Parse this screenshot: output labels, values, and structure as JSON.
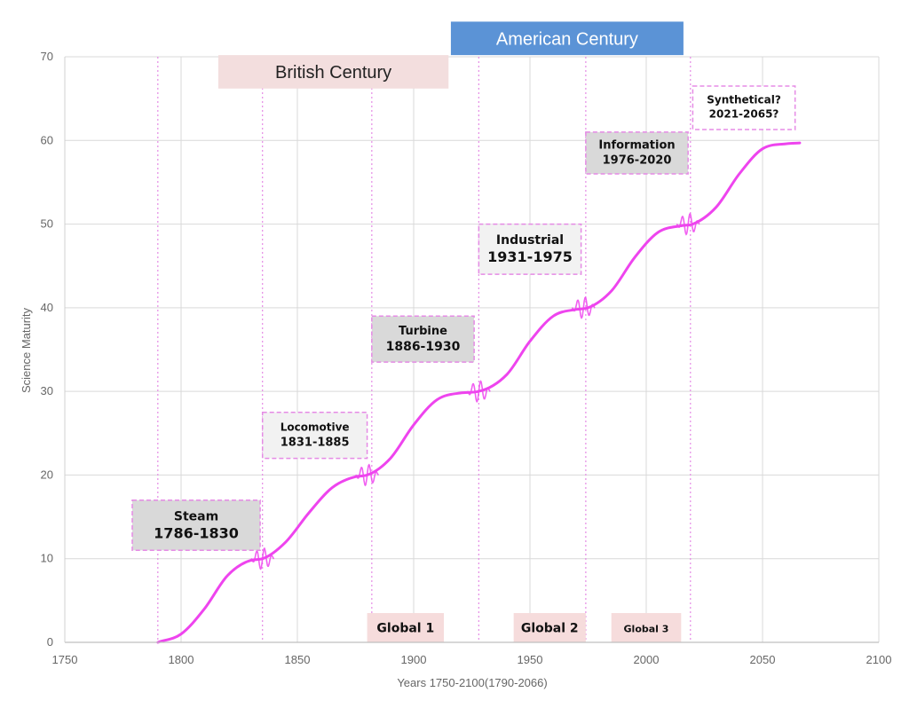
{
  "chart_data": {
    "type": "line",
    "title": "",
    "xlabel": "Years 1750-2100(1790-2066)",
    "ylabel": "Science Maturity",
    "xlim": [
      1750,
      2100
    ],
    "ylim": [
      0,
      70
    ],
    "x_ticks": [
      1750,
      1800,
      1850,
      1900,
      1950,
      2000,
      2050,
      2100
    ],
    "y_ticks": [
      0,
      10,
      20,
      30,
      40,
      50,
      60,
      70
    ],
    "grid": true,
    "series": [
      {
        "color": "#ee44ee",
        "x": [
          1790,
          1800,
          1810,
          1820,
          1830,
          1835,
          1845,
          1855,
          1865,
          1875,
          1880,
          1890,
          1900,
          1910,
          1920,
          1928,
          1940,
          1950,
          1960,
          1970,
          1975,
          1985,
          1995,
          2005,
          2015,
          2020,
          2030,
          2040,
          2050,
          2060,
          2066
        ],
        "y": [
          0,
          1,
          4,
          8,
          9.8,
          10,
          12,
          15.5,
          18.5,
          19.8,
          20,
          22,
          26,
          29,
          29.8,
          30,
          32,
          36,
          39,
          39.8,
          40,
          42,
          46,
          49,
          49.8,
          50,
          52,
          56,
          59,
          59.6,
          59.7
        ]
      }
    ],
    "eras": [
      {
        "name": "Steam",
        "years": "1786-1830",
        "x_start": 1779,
        "x_end": 1784,
        "x_from": 1779,
        "x_to": 1834,
        "y_top": 17,
        "y_bottom": 11,
        "fill": "#d9d9d9",
        "name_size": 14,
        "years_size": 16
      },
      {
        "name": "Locomotive",
        "years": "1831-1885",
        "x_from": 1835,
        "x_to": 1880,
        "y_top": 27.5,
        "y_bottom": 22,
        "fill": "#f2f2f2",
        "name_size": 12,
        "years_size": 13
      },
      {
        "name": "Turbine",
        "years": "1886-1930",
        "x_from": 1882,
        "x_to": 1926,
        "y_top": 39,
        "y_bottom": 33.5,
        "fill": "#d9d9d9",
        "name_size": 13,
        "years_size": 14
      },
      {
        "name": "Industrial",
        "years": "1931-1975",
        "x_from": 1928,
        "x_to": 1972,
        "y_top": 50,
        "y_bottom": 44,
        "fill": "#f2f2f2",
        "name_size": 14,
        "years_size": 16
      },
      {
        "name": "Information",
        "years": "1976-2020",
        "x_from": 1974,
        "x_to": 2018,
        "y_top": 61,
        "y_bottom": 56,
        "fill": "#d9d9d9",
        "name_size": 13,
        "years_size": 13
      },
      {
        "name": "Synthetical?",
        "years": "2021-2065?",
        "x_from": 2020,
        "x_to": 2064,
        "y_top": 66.5,
        "y_bottom": 61.3,
        "fill": "#ffffff",
        "name_size": 12,
        "years_size": 12
      }
    ],
    "era_boundaries": [
      1790,
      1835,
      1882,
      1928,
      1974,
      2019
    ],
    "transitions": [
      1835,
      1880,
      1928,
      1973,
      2018
    ],
    "centuries": [
      {
        "label": "British Century",
        "x_from": 1816,
        "x_to": 1915,
        "y_top": 70.2,
        "y_bottom": 66.2,
        "fill": "#f3dede",
        "text_color": "#222222"
      },
      {
        "label": "American Century",
        "x_from": 1916,
        "x_to": 2016,
        "y_top": 74.2,
        "y_bottom": 70.2,
        "fill": "#5b93d6",
        "text_color": "#ffffff"
      }
    ],
    "globals": [
      {
        "label": "Global 1",
        "x_from": 1880,
        "x_to": 1913,
        "y_top": 3.5,
        "y_bottom": 0,
        "font_size": 14
      },
      {
        "label": "Global 2",
        "x_from": 1943,
        "x_to": 1974,
        "y_top": 3.5,
        "y_bottom": 0,
        "font_size": 14
      },
      {
        "label": "Global 3",
        "x_from": 1985,
        "x_to": 2015,
        "y_top": 3.5,
        "y_bottom": 0,
        "font_size": 11
      }
    ]
  },
  "colors": {
    "curve": "#ee44ee",
    "dashed_line": "#e58be5",
    "grid": "#d9d9d9",
    "global_fill": "#f6dcdc"
  }
}
